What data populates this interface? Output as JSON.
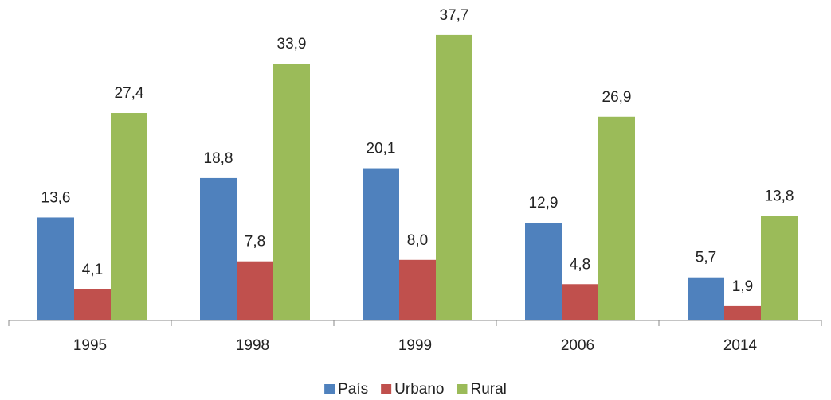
{
  "chart_data": {
    "type": "bar",
    "categories": [
      "1995",
      "1998",
      "1999",
      "2006",
      "2014"
    ],
    "series": [
      {
        "name": "País",
        "color": "#4f81bd",
        "values": [
          13.6,
          18.8,
          20.1,
          12.9,
          5.7
        ],
        "value_labels": [
          "13,6",
          "18,8",
          "20,1",
          "12,9",
          "5,7"
        ]
      },
      {
        "name": "Urbano",
        "color": "#c0504d",
        "values": [
          4.1,
          7.8,
          8.0,
          4.8,
          1.9
        ],
        "value_labels": [
          "4,1",
          "7,8",
          "8,0",
          "4,8",
          "1,9"
        ]
      },
      {
        "name": "Rural",
        "color": "#9bbb59",
        "values": [
          27.4,
          33.9,
          37.7,
          26.9,
          13.8
        ],
        "value_labels": [
          "27,4",
          "33,9",
          "37,7",
          "26,9",
          "13,8"
        ]
      }
    ],
    "ylim": [
      0,
      40
    ],
    "legend": "bottom"
  }
}
